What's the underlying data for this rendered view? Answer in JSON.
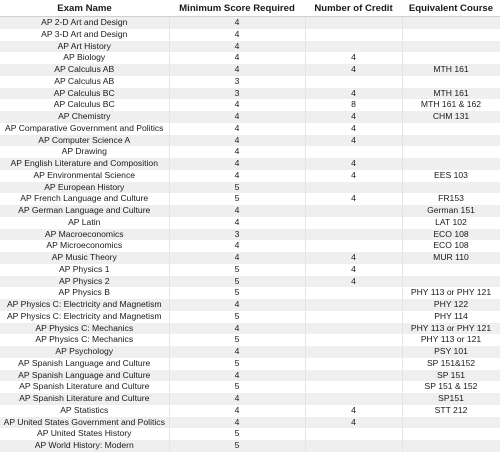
{
  "headers": [
    "Exam Name",
    "Minimum Score Required",
    "Number of Credit",
    "Equivalent Course"
  ],
  "rows": [
    {
      "exam": "AP 2-D Art and Design",
      "score": "4",
      "credits": "",
      "course": ""
    },
    {
      "exam": "AP 3-D Art and Design",
      "score": "4",
      "credits": "",
      "course": ""
    },
    {
      "exam": "AP Art History",
      "score": "4",
      "credits": "",
      "course": ""
    },
    {
      "exam": "AP Biology",
      "score": "4",
      "credits": "4",
      "course": ""
    },
    {
      "exam": "AP Calculus AB",
      "score": "4",
      "credits": "4",
      "course": "MTH 161"
    },
    {
      "exam": "AP Calculus AB",
      "score": "3",
      "credits": "",
      "course": ""
    },
    {
      "exam": "AP Calculus BC",
      "score": "3",
      "credits": "4",
      "course": "MTH 161"
    },
    {
      "exam": "AP Calculus BC",
      "score": "4",
      "credits": "8",
      "course": "MTH 161 & 162"
    },
    {
      "exam": "AP Chemistry",
      "score": "4",
      "credits": "4",
      "course": "CHM 131"
    },
    {
      "exam": "AP Comparative Government and Politics",
      "score": "4",
      "credits": "4",
      "course": ""
    },
    {
      "exam": "AP Computer Science A",
      "score": "4",
      "credits": "4",
      "course": ""
    },
    {
      "exam": "AP Drawing",
      "score": "4",
      "credits": "",
      "course": ""
    },
    {
      "exam": "AP English Literature and Composition",
      "score": "4",
      "credits": "4",
      "course": ""
    },
    {
      "exam": "AP Environmental Science",
      "score": "4",
      "credits": "4",
      "course": "EES 103"
    },
    {
      "exam": "AP European History",
      "score": "5",
      "credits": "",
      "course": ""
    },
    {
      "exam": "AP French Language and Culture",
      "score": "5",
      "credits": "4",
      "course": "FR153"
    },
    {
      "exam": "AP German Language and Culture",
      "score": "4",
      "credits": "",
      "course": "German 151"
    },
    {
      "exam": "AP Latin",
      "score": "4",
      "credits": "",
      "course": "LAT 102"
    },
    {
      "exam": "AP Macroeconomics",
      "score": "3",
      "credits": "",
      "course": "ECO 108"
    },
    {
      "exam": "AP Microeconomics",
      "score": "4",
      "credits": "",
      "course": "ECO 108"
    },
    {
      "exam": "AP Music Theory",
      "score": "4",
      "credits": "4",
      "course": "MUR 110"
    },
    {
      "exam": "AP Physics 1",
      "score": "5",
      "credits": "4",
      "course": ""
    },
    {
      "exam": "AP Physics 2",
      "score": "5",
      "credits": "4",
      "course": ""
    },
    {
      "exam": "AP Physics B",
      "score": "5",
      "credits": "",
      "course": "PHY 113 or PHY 121"
    },
    {
      "exam": "AP Physics C: Electricity and Magnetism",
      "score": "4",
      "credits": "",
      "course": "PHY 122"
    },
    {
      "exam": "AP Physics C: Electricity and Magnetism",
      "score": "5",
      "credits": "",
      "course": "PHY 114"
    },
    {
      "exam": "AP Physics C: Mechanics",
      "score": "4",
      "credits": "",
      "course": "PHY 113 or PHY 121"
    },
    {
      "exam": "AP Physics C: Mechanics",
      "score": "5",
      "credits": "",
      "course": "PHY 113 or 121"
    },
    {
      "exam": "AP Psychology",
      "score": "4",
      "credits": "",
      "course": "PSY 101"
    },
    {
      "exam": "AP Spanish Language and Culture",
      "score": "5",
      "credits": "",
      "course": "SP 151&152"
    },
    {
      "exam": "AP Spanish Language and Culture",
      "score": "4",
      "credits": "",
      "course": "SP 151"
    },
    {
      "exam": "AP Spanish Literature and Culture",
      "score": "5",
      "credits": "",
      "course": "SP 151 & 152"
    },
    {
      "exam": "AP Spanish Literature and Culture",
      "score": "4",
      "credits": "",
      "course": "SP151"
    },
    {
      "exam": "AP Statistics",
      "score": "4",
      "credits": "4",
      "course": "STT 212"
    },
    {
      "exam": "AP United States Government and Politics",
      "score": "4",
      "credits": "4",
      "course": ""
    },
    {
      "exam": "AP United States History",
      "score": "5",
      "credits": "",
      "course": ""
    },
    {
      "exam": "AP World History: Modern",
      "score": "5",
      "credits": "",
      "course": ""
    }
  ]
}
